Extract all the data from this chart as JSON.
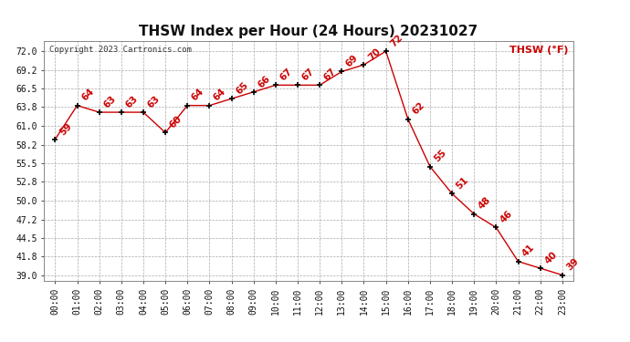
{
  "title": "THSW Index per Hour (24 Hours) 20231027",
  "copyright": "Copyright 2023 Cartronics.com",
  "legend_label": "THSW (°F)",
  "hours": [
    0,
    1,
    2,
    3,
    4,
    5,
    6,
    7,
    8,
    9,
    10,
    11,
    12,
    13,
    14,
    15,
    16,
    17,
    18,
    19,
    20,
    21,
    22,
    23
  ],
  "values": [
    59,
    64,
    63,
    63,
    63,
    60,
    64,
    64,
    65,
    66,
    67,
    67,
    67,
    69,
    70,
    72,
    62,
    55,
    51,
    48,
    46,
    41,
    40,
    39
  ],
  "x_labels": [
    "00:00",
    "01:00",
    "02:00",
    "03:00",
    "04:00",
    "05:00",
    "06:00",
    "07:00",
    "08:00",
    "09:00",
    "10:00",
    "11:00",
    "12:00",
    "13:00",
    "14:00",
    "15:00",
    "16:00",
    "17:00",
    "18:00",
    "19:00",
    "20:00",
    "21:00",
    "22:00",
    "23:00"
  ],
  "y_ticks": [
    39.0,
    41.8,
    44.5,
    47.2,
    50.0,
    52.8,
    55.5,
    58.2,
    61.0,
    63.8,
    66.5,
    69.2,
    72.0
  ],
  "ylim": [
    38.2,
    73.5
  ],
  "line_color": "#cc0000",
  "marker_color": "#000000",
  "bg_color": "#ffffff",
  "grid_color": "#aaaaaa",
  "title_fontsize": 11,
  "label_fontsize": 7,
  "annotation_fontsize": 7.5,
  "copyright_fontsize": 6.5,
  "legend_fontsize": 8
}
